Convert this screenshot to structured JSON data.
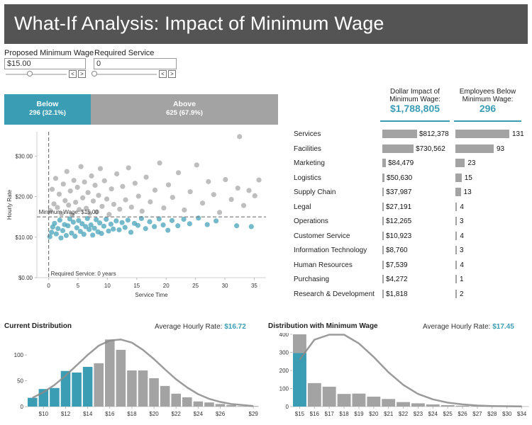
{
  "header": {
    "title": "What-If Analysis: Impact of Minimum Wage"
  },
  "controls": {
    "wage_label": "Proposed Minimum Wage",
    "wage_value": "$15.00",
    "service_label": "Required Service",
    "service_value": "0",
    "prev_glyph": "<",
    "next_glyph": ">",
    "wage_slider_fraction": 0.4,
    "service_slider_fraction": 0.0
  },
  "split": {
    "below_label": "Below",
    "below_value": "296 (32.1%)",
    "below_fraction": 0.321,
    "above_label": "Above",
    "above_value": "625 (67.9%)"
  },
  "kpis": {
    "dollar_title_1": "Dollar Impact of",
    "dollar_title_2": "Minimum Wage:",
    "dollar_value": "$1,788,805",
    "emp_title_1": "Employees Below",
    "emp_title_2": "Minimum Wage:",
    "emp_value": "296"
  },
  "departments": [
    {
      "name": "Services",
      "dollar": 812378,
      "dollar_label": "$812,378",
      "count": 131
    },
    {
      "name": "Facilities",
      "dollar": 730562,
      "dollar_label": "$730,562",
      "count": 93
    },
    {
      "name": "Marketing",
      "dollar": 84479,
      "dollar_label": "$84,479",
      "count": 23
    },
    {
      "name": "Logistics",
      "dollar": 50630,
      "dollar_label": "$50,630",
      "count": 15
    },
    {
      "name": "Supply Chain",
      "dollar": 37987,
      "dollar_label": "$37,987",
      "count": 13
    },
    {
      "name": "Legal",
      "dollar": 27191,
      "dollar_label": "$27,191",
      "count": 4
    },
    {
      "name": "Operations",
      "dollar": 12265,
      "dollar_label": "$12,265",
      "count": 3
    },
    {
      "name": "Customer Service",
      "dollar": 10923,
      "dollar_label": "$10,923",
      "count": 4
    },
    {
      "name": "Information Technology",
      "dollar": 8760,
      "dollar_label": "$8,760",
      "count": 3
    },
    {
      "name": "Human Resources",
      "dollar": 7539,
      "dollar_label": "$7,539",
      "count": 4
    },
    {
      "name": "Purchasing",
      "dollar": 4272,
      "dollar_label": "$4,272",
      "count": 1
    },
    {
      "name": "Research & Development",
      "dollar": 1818,
      "dollar_label": "$1,818",
      "count": 2
    }
  ],
  "colors": {
    "teal": "#3a9db3",
    "gray": "#a3a3a3",
    "dark": "#545454"
  },
  "chart_data": [
    {
      "type": "scatter",
      "name": "scatter",
      "xlabel": "Service Time",
      "ylabel": "Hourly Rate",
      "xlim": [
        -2,
        37
      ],
      "ylim": [
        0,
        36
      ],
      "xticks": [
        0,
        5,
        10,
        15,
        20,
        25,
        30,
        35
      ],
      "yticks": [
        0,
        10,
        20,
        30
      ],
      "ytick_labels": [
        "$0.00",
        "$10.00",
        "$20.00",
        "$30.00"
      ],
      "min_wage_line": 15,
      "min_wage_label": "Minimum Wage: $15.00",
      "required_service_line": 0,
      "required_service_label": "Required Service: 0 years",
      "series": [
        {
          "name": "Below",
          "points": [
            [
              0.2,
              10.1
            ],
            [
              0.5,
              11.2
            ],
            [
              0.7,
              12.5
            ],
            [
              1.0,
              13.4
            ],
            [
              1.3,
              10.8
            ],
            [
              1.6,
              12.1
            ],
            [
              1.9,
              14.2
            ],
            [
              2.1,
              9.8
            ],
            [
              2.4,
              11.6
            ],
            [
              2.7,
              13.1
            ],
            [
              3.0,
              10.4
            ],
            [
              3.3,
              12.8
            ],
            [
              3.6,
              14.5
            ],
            [
              3.9,
              11.0
            ],
            [
              4.2,
              13.7
            ],
            [
              4.5,
              10.2
            ],
            [
              4.8,
              12.3
            ],
            [
              5.1,
              14.1
            ],
            [
              5.4,
              11.4
            ],
            [
              5.7,
              13.3
            ],
            [
              6.0,
              10.7
            ],
            [
              6.3,
              12.6
            ],
            [
              6.6,
              14.6
            ],
            [
              6.9,
              11.9
            ],
            [
              7.2,
              13.0
            ],
            [
              7.5,
              10.5
            ],
            [
              7.8,
              12.2
            ],
            [
              8.1,
              14.3
            ],
            [
              8.4,
              11.3
            ],
            [
              8.7,
              13.5
            ],
            [
              9.0,
              10.9
            ],
            [
              9.4,
              12.7
            ],
            [
              9.8,
              14.4
            ],
            [
              10.2,
              11.5
            ],
            [
              10.6,
              13.2
            ],
            [
              11.0,
              12.0
            ],
            [
              11.5,
              14.0
            ],
            [
              12.0,
              11.8
            ],
            [
              12.5,
              13.6
            ],
            [
              13.0,
              12.4
            ],
            [
              13.5,
              14.2
            ],
            [
              14.0,
              11.2
            ],
            [
              14.6,
              13.4
            ],
            [
              15.2,
              12.9
            ],
            [
              15.8,
              14.6
            ],
            [
              16.5,
              12.1
            ],
            [
              17.2,
              13.8
            ],
            [
              18.0,
              12.6
            ],
            [
              18.8,
              14.5
            ],
            [
              19.5,
              13.0
            ],
            [
              20.3,
              11.7
            ],
            [
              21.0,
              14.1
            ],
            [
              22.0,
              12.8
            ],
            [
              23.0,
              14.4
            ],
            [
              24.0,
              13.3
            ],
            [
              25.5,
              14.7
            ],
            [
              27.0,
              13.1
            ],
            [
              28.5,
              14.0
            ],
            [
              32.0,
              12.8
            ],
            [
              34.5,
              12.6
            ]
          ]
        },
        {
          "name": "Above",
          "points": [
            [
              0.3,
              16.5
            ],
            [
              0.6,
              21.8
            ],
            [
              0.9,
              18.2
            ],
            [
              1.2,
              24.5
            ],
            [
              1.5,
              17.3
            ],
            [
              1.8,
              20.6
            ],
            [
              2.2,
              15.8
            ],
            [
              2.5,
              23.1
            ],
            [
              2.8,
              19.0
            ],
            [
              3.1,
              26.2
            ],
            [
              3.4,
              17.9
            ],
            [
              3.7,
              21.4
            ],
            [
              4.0,
              15.5
            ],
            [
              4.3,
              24.0
            ],
            [
              4.6,
              18.6
            ],
            [
              4.9,
              22.3
            ],
            [
              5.2,
              16.8
            ],
            [
              5.5,
              27.4
            ],
            [
              5.8,
              19.7
            ],
            [
              6.1,
              23.6
            ],
            [
              6.4,
              17.1
            ],
            [
              6.7,
              21.0
            ],
            [
              7.0,
              15.9
            ],
            [
              7.3,
              25.1
            ],
            [
              7.6,
              18.9
            ],
            [
              7.9,
              22.8
            ],
            [
              8.2,
              16.2
            ],
            [
              8.5,
              20.3
            ],
            [
              8.8,
              26.9
            ],
            [
              9.1,
              17.6
            ],
            [
              9.5,
              23.9
            ],
            [
              9.9,
              19.4
            ],
            [
              10.3,
              15.6
            ],
            [
              10.7,
              21.9
            ],
            [
              11.1,
              18.1
            ],
            [
              11.6,
              25.6
            ],
            [
              12.1,
              16.9
            ],
            [
              12.6,
              22.5
            ],
            [
              13.1,
              19.2
            ],
            [
              13.6,
              27.1
            ],
            [
              14.1,
              17.4
            ],
            [
              14.7,
              23.3
            ],
            [
              15.3,
              20.1
            ],
            [
              15.9,
              16.4
            ],
            [
              16.6,
              24.8
            ],
            [
              17.3,
              18.7
            ],
            [
              18.1,
              21.6
            ],
            [
              18.9,
              28.3
            ],
            [
              19.6,
              17.2
            ],
            [
              20.4,
              22.9
            ],
            [
              21.1,
              19.8
            ],
            [
              22.1,
              25.9
            ],
            [
              23.1,
              16.7
            ],
            [
              24.1,
              21.2
            ],
            [
              25.2,
              27.8
            ],
            [
              26.2,
              18.4
            ],
            [
              27.2,
              23.7
            ],
            [
              28.1,
              20.5
            ],
            [
              29.1,
              16.1
            ],
            [
              30.1,
              24.2
            ],
            [
              31.1,
              19.3
            ],
            [
              32.2,
              22.1
            ],
            [
              33.2,
              17.8
            ],
            [
              34.1,
              21.5
            ],
            [
              35.1,
              20.2
            ],
            [
              35.8,
              24.1
            ],
            [
              32.5,
              34.8
            ]
          ]
        }
      ]
    },
    {
      "type": "bar",
      "name": "current_distribution",
      "title": "Current Distribution",
      "avg_label": "Average Hourly Rate:",
      "avg_value": "$16.72",
      "ylim": [
        0,
        140
      ],
      "yticks": [
        0,
        50,
        100
      ],
      "categories": [
        "$9",
        "$10",
        "$11",
        "$12",
        "$13",
        "$14",
        "$15",
        "$16",
        "$17",
        "$18",
        "$19",
        "$20",
        "$21",
        "$22",
        "$23",
        "$24",
        "$25",
        "$26",
        "$27",
        "$28",
        "$29"
      ],
      "tick_labels": [
        "$10",
        "$12",
        "$14",
        "$16",
        "$18",
        "$20",
        "$22",
        "$24",
        "$26",
        "$29"
      ],
      "tick_indices": [
        1,
        3,
        5,
        7,
        9,
        11,
        13,
        15,
        17,
        20
      ],
      "values": [
        17,
        34,
        36,
        69,
        66,
        77,
        84,
        130,
        110,
        70,
        70,
        55,
        40,
        25,
        18,
        10,
        8,
        5,
        3,
        1,
        1
      ],
      "below_count": 6,
      "curve_values": [
        17,
        28,
        42,
        60,
        80,
        100,
        118,
        128,
        130,
        124,
        110,
        92,
        72,
        53,
        37,
        24,
        15,
        9,
        5,
        3,
        1
      ]
    },
    {
      "type": "bar",
      "name": "distribution_with_minimum_wage",
      "title": "Distribution with Minimum Wage",
      "avg_label": "Average Hourly Rate:",
      "avg_value": "$17.45",
      "ylim": [
        0,
        400
      ],
      "yticks": [
        0,
        100,
        200,
        300,
        400
      ],
      "categories": [
        "$15",
        "$16",
        "$17",
        "$18",
        "$19",
        "$20",
        "$21",
        "$22",
        "$23",
        "$24",
        "$25",
        "$26",
        "$27",
        "$28",
        "$30",
        "$34"
      ],
      "tick_labels": [
        "$15",
        "$16",
        "$17",
        "$18",
        "$19",
        "$20",
        "$21",
        "$22",
        "$23",
        "$24",
        "$25",
        "$26",
        "$27",
        "$28",
        "$30",
        "$34"
      ],
      "values": [
        400,
        130,
        110,
        70,
        72,
        55,
        42,
        25,
        18,
        12,
        8,
        5,
        3,
        2,
        1,
        1
      ],
      "teal_portion_first_bar": 296,
      "curve_values": [
        260,
        370,
        398,
        398,
        350,
        275,
        190,
        120,
        70,
        40,
        22,
        12,
        6,
        3,
        2,
        1
      ]
    }
  ]
}
